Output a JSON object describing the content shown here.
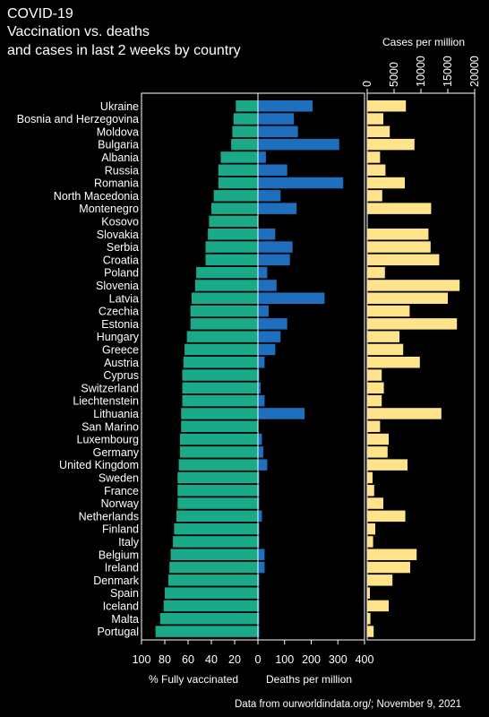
{
  "title_lines": [
    "COVID-19",
    "Vaccination vs. deaths",
    "and cases in last 2 weeks by country"
  ],
  "footer": "Data from ourworldindata.org/;  November 9, 2021",
  "colors": {
    "vaccinated": "#1aaa8a",
    "deaths": "#1f6fbf",
    "cases": "#ffe38a",
    "background": "#000000"
  },
  "chart_data": {
    "type": "bar",
    "categories": [
      "Ukraine",
      "Bosnia and Herzegovina",
      "Moldova",
      "Bulgaria",
      "Albania",
      "Russia",
      "Romania",
      "North Macedonia",
      "Montenegro",
      "Kosovo",
      "Slovakia",
      "Serbia",
      "Croatia",
      "Poland",
      "Slovenia",
      "Latvia",
      "Czechia",
      "Estonia",
      "Hungary",
      "Greece",
      "Austria",
      "Cyprus",
      "Switzerland",
      "Liechtenstein",
      "Lithuania",
      "San Marino",
      "Luxembourg",
      "Germany",
      "United Kingdom",
      "Sweden",
      "France",
      "Norway",
      "Netherlands",
      "Finland",
      "Italy",
      "Belgium",
      "Ireland",
      "Denmark",
      "Spain",
      "Iceland",
      "Malta",
      "Portugal"
    ],
    "series": [
      {
        "name": "% Fully vaccinated",
        "values": [
          19,
          21,
          22,
          23,
          32,
          34,
          34,
          38,
          40,
          42,
          43,
          45,
          45,
          53,
          54,
          57,
          58,
          58,
          61,
          63,
          64,
          65,
          65,
          65,
          66,
          66,
          67,
          67,
          68,
          69,
          69,
          69,
          70,
          72,
          73,
          75,
          76,
          77,
          80,
          81,
          84,
          88
        ]
      },
      {
        "name": "Deaths per million",
        "values": [
          205,
          135,
          150,
          305,
          30,
          110,
          320,
          85,
          145,
          0,
          65,
          130,
          120,
          35,
          70,
          250,
          40,
          110,
          85,
          65,
          25,
          5,
          10,
          25,
          175,
          0,
          15,
          20,
          35,
          5,
          5,
          5,
          15,
          5,
          5,
          25,
          25,
          5,
          5,
          5,
          5,
          5
        ]
      },
      {
        "name": "Cases per million",
        "values": [
          7200,
          3000,
          4200,
          8800,
          2400,
          3400,
          7000,
          2800,
          11900,
          0,
          11400,
          11800,
          13400,
          3300,
          17200,
          15000,
          7900,
          16700,
          6000,
          6700,
          9800,
          2700,
          3100,
          2700,
          13800,
          2400,
          4000,
          3800,
          7500,
          1000,
          1300,
          3000,
          7100,
          1500,
          1100,
          9200,
          8000,
          4700,
          500,
          4000,
          600,
          1200
        ]
      }
    ],
    "axes": {
      "vaccinated": {
        "xlabel": "% Fully vaccinated",
        "range": [
          100,
          0
        ],
        "ticks": [
          100,
          80,
          60,
          40,
          20,
          0
        ]
      },
      "deaths": {
        "xlabel": "Deaths per million",
        "range": [
          0,
          400
        ],
        "ticks": [
          0,
          100,
          200,
          300,
          400
        ]
      },
      "cases": {
        "xlabel": "Cases per million",
        "range": [
          0,
          20000
        ],
        "ticks": [
          0,
          5000,
          10000,
          15000,
          20000
        ]
      }
    },
    "grid": false,
    "legend": "none"
  }
}
